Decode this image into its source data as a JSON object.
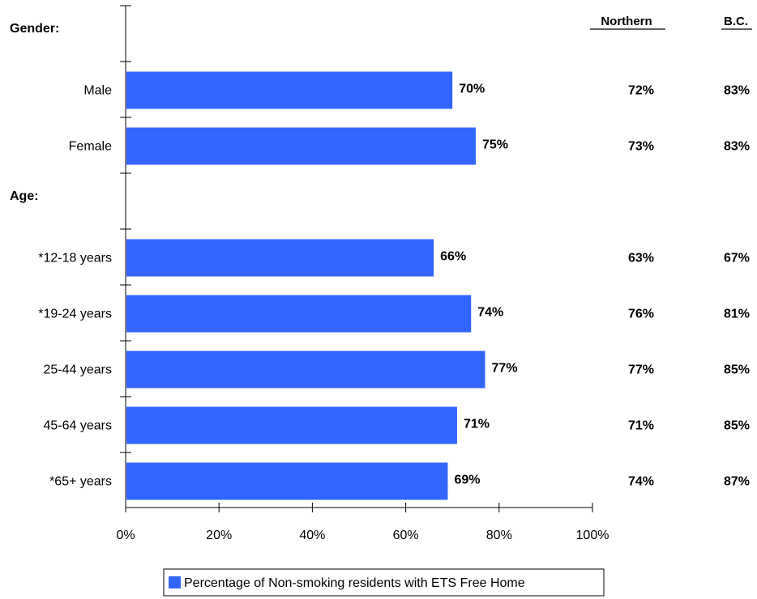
{
  "chart_data": {
    "type": "bar",
    "orientation": "horizontal",
    "sections": [
      {
        "title": "Gender:",
        "rows": [
          {
            "label": "Male",
            "value": 70,
            "value_label": "70%",
            "northern": "72%",
            "bc": "83%"
          },
          {
            "label": "Female",
            "value": 75,
            "value_label": "75%",
            "northern": "73%",
            "bc": "83%"
          }
        ]
      },
      {
        "title": "Age:",
        "rows": [
          {
            "label": "*12-18 years",
            "value": 66,
            "value_label": "66%",
            "northern": "63%",
            "bc": "67%"
          },
          {
            "label": "*19-24 years",
            "value": 74,
            "value_label": "74%",
            "northern": "76%",
            "bc": "81%"
          },
          {
            "label": "25-44 years",
            "value": 77,
            "value_label": "77%",
            "northern": "77%",
            "bc": "85%"
          },
          {
            "label": "45-64 years",
            "value": 71,
            "value_label": "71%",
            "northern": "71%",
            "bc": "85%"
          },
          {
            "label": "*65+ years",
            "value": 69,
            "value_label": "69%",
            "northern": "74%",
            "bc": "87%"
          }
        ]
      }
    ],
    "x_ticks": [
      "0%",
      "20%",
      "40%",
      "60%",
      "80%",
      "100%"
    ],
    "xlim": [
      0,
      100
    ],
    "columns": [
      "Northern",
      "B.C."
    ],
    "legend": {
      "label": "Percentage of Non-smoking residents with ETS Free Home",
      "placement": "bottom"
    },
    "series": [
      {
        "name": "Percentage of Non-smoking residents with ETS Free Home",
        "color": "#3366ff"
      }
    ],
    "grid": false
  }
}
